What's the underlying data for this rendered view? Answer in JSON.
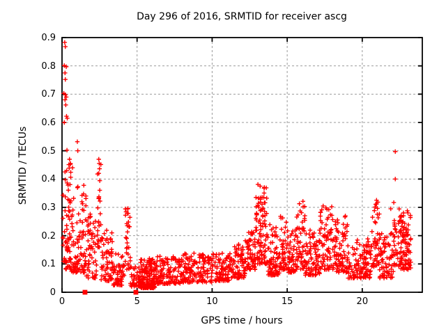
{
  "chart_data": {
    "type": "scatter",
    "title": "Day 296 of 2016, SRMTID for receiver ascg",
    "xlabel": "GPS time / hours",
    "ylabel": "SRMTID / TECUs",
    "xlim": [
      0,
      24
    ],
    "ylim": [
      0,
      0.9
    ],
    "xticks": [
      0,
      5,
      10,
      15,
      20
    ],
    "yticks": [
      0,
      0.1,
      0.2,
      0.3,
      0.4,
      0.5,
      0.6,
      0.7,
      0.8,
      0.9
    ],
    "grid": true,
    "legend": "none",
    "marker": "plus",
    "marker_color": "#ff0000",
    "grid_color": "#999999",
    "axis_color": "#000000",
    "background_color": "#ffffff",
    "series": [
      {
        "name": "srmtid-points",
        "style": "plus-cloud",
        "seed": 20160296,
        "outliers": [
          [
            0.18,
            0.883
          ],
          [
            0.22,
            0.868
          ],
          [
            0.15,
            0.801
          ],
          [
            0.28,
            0.797
          ],
          [
            0.2,
            0.775
          ],
          [
            0.22,
            0.752
          ],
          [
            0.12,
            0.703
          ],
          [
            0.22,
            0.698
          ],
          [
            0.28,
            0.69
          ],
          [
            0.2,
            0.68
          ],
          [
            0.25,
            0.662
          ],
          [
            0.3,
            0.622
          ],
          [
            0.35,
            0.615
          ],
          [
            0.15,
            0.6
          ],
          [
            0.5,
            0.47
          ],
          [
            0.55,
            0.452
          ],
          [
            0.7,
            0.44
          ],
          [
            1.02,
            0.532
          ],
          [
            0.33,
            0.502
          ],
          [
            1.05,
            0.5
          ],
          [
            2.45,
            0.47
          ],
          [
            2.48,
            0.455
          ],
          [
            13.05,
            0.381
          ],
          [
            13.2,
            0.375
          ],
          [
            22.2,
            0.497
          ],
          [
            22.2,
            0.4
          ],
          [
            22.1,
            0.317
          ],
          [
            21.9,
            0.295
          ],
          [
            16.0,
            0.248
          ]
        ],
        "cloud_segments": [
          [
            0.05,
            0.6,
            0.08,
            0.47,
            70,
            1.6
          ],
          [
            0.6,
            1.6,
            0.07,
            0.38,
            90,
            2.0
          ],
          [
            1.6,
            2.3,
            0.05,
            0.28,
            55,
            1.8
          ],
          [
            2.35,
            2.6,
            0.15,
            0.46,
            28,
            1.0
          ],
          [
            2.6,
            3.4,
            0.04,
            0.22,
            60,
            1.8
          ],
          [
            3.4,
            4.15,
            0.025,
            0.14,
            55,
            1.6
          ],
          [
            4.2,
            4.55,
            0.08,
            0.3,
            30,
            1.4
          ],
          [
            4.55,
            5.2,
            0.02,
            0.09,
            45,
            1.3
          ],
          [
            5.2,
            6.2,
            0.015,
            0.12,
            150,
            1.6
          ],
          [
            6.2,
            8.0,
            0.03,
            0.13,
            130,
            1.7
          ],
          [
            8.0,
            10.0,
            0.035,
            0.14,
            140,
            1.7
          ],
          [
            10.0,
            11.2,
            0.04,
            0.14,
            85,
            1.6
          ],
          [
            11.2,
            12.2,
            0.05,
            0.17,
            75,
            1.6
          ],
          [
            12.2,
            12.9,
            0.08,
            0.22,
            60,
            1.4
          ],
          [
            12.9,
            13.7,
            0.1,
            0.385,
            95,
            1.7
          ],
          [
            13.7,
            14.5,
            0.06,
            0.24,
            75,
            1.8
          ],
          [
            14.5,
            15.0,
            0.08,
            0.3,
            45,
            1.7
          ],
          [
            15.0,
            15.6,
            0.07,
            0.22,
            50,
            1.6
          ],
          [
            15.6,
            16.2,
            0.08,
            0.33,
            55,
            1.7
          ],
          [
            16.2,
            17.2,
            0.06,
            0.22,
            85,
            1.7
          ],
          [
            17.2,
            18.1,
            0.08,
            0.33,
            75,
            1.7
          ],
          [
            18.1,
            19.05,
            0.07,
            0.27,
            80,
            1.8
          ],
          [
            19.05,
            19.6,
            0.05,
            0.16,
            30,
            1.5
          ],
          [
            19.6,
            20.6,
            0.05,
            0.19,
            80,
            1.6
          ],
          [
            20.6,
            21.15,
            0.09,
            0.33,
            50,
            1.6
          ],
          [
            21.15,
            22.1,
            0.05,
            0.21,
            70,
            1.6
          ],
          [
            22.1,
            22.5,
            0.09,
            0.3,
            30,
            1.5
          ],
          [
            22.5,
            23.25,
            0.08,
            0.29,
            95,
            1.6
          ]
        ]
      },
      {
        "name": "flag-squares",
        "style": "filled-square",
        "points": [
          [
            1.53,
            0
          ],
          [
            4.92,
            0
          ]
        ]
      }
    ]
  }
}
